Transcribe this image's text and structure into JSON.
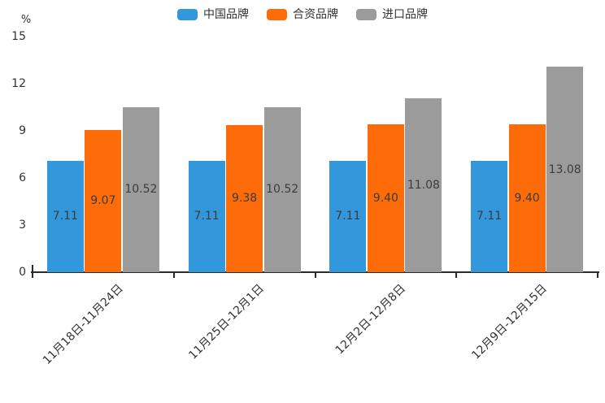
{
  "chart_data": {
    "type": "bar",
    "title": "",
    "ylabel": "%",
    "xlabel": "",
    "ylim": [
      0,
      15
    ],
    "yticks": [
      0,
      3,
      6,
      9,
      12,
      15
    ],
    "grid": false,
    "legend_position": "top-center",
    "value_label_style": "inside-center, two decimals",
    "categories": [
      "11月18日-11月24日",
      "11月25日-12月1日",
      "12月2日-12月8日",
      "12月9日-12月15日"
    ],
    "series": [
      {
        "name": "中国品牌",
        "color": "#3398DB",
        "values": [
          7.11,
          7.11,
          7.11,
          7.11
        ]
      },
      {
        "name": "合资品牌",
        "color": "#FD6C08",
        "values": [
          9.07,
          9.38,
          9.4,
          9.4
        ]
      },
      {
        "name": "进口品牌",
        "color": "#9B9B9B",
        "values": [
          10.52,
          10.52,
          11.08,
          13.08
        ]
      }
    ]
  },
  "colors": {
    "axis": "#2a2a2a",
    "tick_text": "#333333",
    "value_text": "#3c3c3c",
    "background": "#ffffff"
  }
}
